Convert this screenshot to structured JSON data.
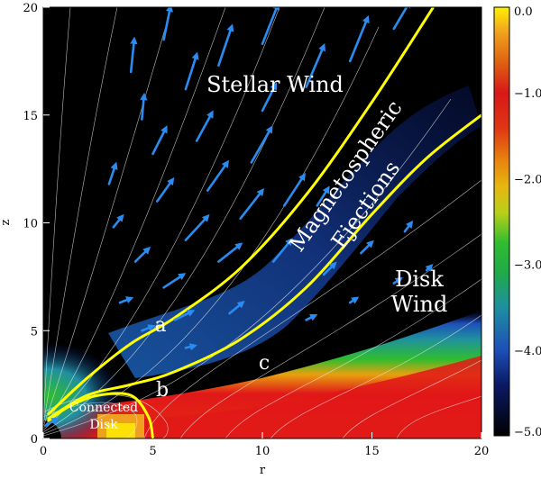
{
  "chart_data": {
    "type": "heatmap",
    "xlabel": "r",
    "ylabel": "z",
    "xlim": [
      0,
      20
    ],
    "ylim": [
      0,
      20
    ],
    "x_ticks": [
      "0",
      "5",
      "10",
      "15",
      "20"
    ],
    "y_ticks": [
      "0",
      "5",
      "10",
      "15",
      "20"
    ],
    "colorbar": {
      "range": [
        -5.0,
        0.0
      ],
      "ticks": [
        "0.0",
        "−1.0",
        "−2.0",
        "−3.0",
        "−4.0",
        "−5.0"
      ],
      "colors": [
        "#000000",
        "#0b1a66",
        "#1d4fb8",
        "#1f8fa0",
        "#1faa4a",
        "#2fbd2f",
        "#b8cf1a",
        "#e5b80f",
        "#e8860d",
        "#e03414",
        "#d81818",
        "#e06a10",
        "#f0a020",
        "#fff000"
      ]
    },
    "region_labels": {
      "stellar_wind": "Stellar Wind",
      "magnetospheric": "Magnetospheric",
      "ejections": "Ejections",
      "disk": "Disk",
      "wind": "Wind",
      "connected": "Connected",
      "disk_small": "Disk",
      "a": "a",
      "b": "b",
      "c": "c"
    },
    "separatrix_lines": [
      {
        "name": "a",
        "points": [
          [
            0.2,
            1.1
          ],
          [
            2,
            2.8
          ],
          [
            4,
            4.4
          ],
          [
            6,
            5.6
          ],
          [
            9,
            7.9
          ],
          [
            12,
            11.3
          ],
          [
            15,
            15.6
          ],
          [
            17.8,
            20
          ]
        ]
      },
      {
        "name": "b",
        "points": [
          [
            0.2,
            0.8
          ],
          [
            1.2,
            1.5
          ],
          [
            2.5,
            2.0
          ],
          [
            4,
            2.0
          ],
          [
            4.8,
            1.0
          ],
          [
            5,
            0
          ]
        ]
      },
      {
        "name": "c",
        "points": [
          [
            0.2,
            0.9
          ],
          [
            2,
            2.0
          ],
          [
            4,
            2.5
          ],
          [
            6,
            3.1
          ],
          [
            9,
            4.6
          ],
          [
            12,
            7.0
          ],
          [
            15,
            10.4
          ],
          [
            17.5,
            13.0
          ],
          [
            20,
            15.0
          ]
        ]
      }
    ],
    "velocity_arrows": [
      {
        "x": 4,
        "z": 17,
        "dx": 0.15,
        "dz": 1.5
      },
      {
        "x": 5.5,
        "z": 18.5,
        "dx": 0.3,
        "dz": 1.5
      },
      {
        "x": 4.5,
        "z": 14.8,
        "dx": 0.1,
        "dz": 1.1
      },
      {
        "x": 6.5,
        "z": 16.2,
        "dx": 0.5,
        "dz": 1.6
      },
      {
        "x": 8,
        "z": 17.3,
        "dx": 0.6,
        "dz": 1.8
      },
      {
        "x": 10,
        "z": 18.3,
        "dx": 0.7,
        "dz": 1.8
      },
      {
        "x": 12,
        "z": 16.3,
        "dx": 0.8,
        "dz": 1.9
      },
      {
        "x": 14,
        "z": 17.5,
        "dx": 0.8,
        "dz": 2.0
      },
      {
        "x": 16,
        "z": 19.0,
        "dx": 0.7,
        "dz": 1.2
      },
      {
        "x": 10,
        "z": 15.2,
        "dx": 0.6,
        "dz": 1.2
      },
      {
        "x": 3,
        "z": 11.8,
        "dx": 0.3,
        "dz": 0.9
      },
      {
        "x": 5,
        "z": 13.2,
        "dx": 0.6,
        "dz": 1.2
      },
      {
        "x": 7,
        "z": 13.8,
        "dx": 0.7,
        "dz": 1.3
      },
      {
        "x": 9.5,
        "z": 12.8,
        "dx": 0.9,
        "dz": 1.6
      },
      {
        "x": 3.2,
        "z": 9.8,
        "dx": 0.4,
        "dz": 0.5
      },
      {
        "x": 5.2,
        "z": 11.0,
        "dx": 0.7,
        "dz": 1.0
      },
      {
        "x": 7.5,
        "z": 11.5,
        "dx": 0.9,
        "dz": 1.3
      },
      {
        "x": 4.2,
        "z": 8.2,
        "dx": 0.6,
        "dz": 0.6
      },
      {
        "x": 6.5,
        "z": 9.2,
        "dx": 1.0,
        "dz": 1.1
      },
      {
        "x": 9,
        "z": 10.2,
        "dx": 1.0,
        "dz": 1.3
      },
      {
        "x": 11,
        "z": 10.8,
        "dx": 0.9,
        "dz": 1.4
      },
      {
        "x": 3.5,
        "z": 6.3,
        "dx": 0.5,
        "dz": 0.2
      },
      {
        "x": 5.5,
        "z": 7.0,
        "dx": 0.9,
        "dz": 0.6
      },
      {
        "x": 8,
        "z": 8.2,
        "dx": 1.0,
        "dz": 0.8
      },
      {
        "x": 10.5,
        "z": 8.2,
        "dx": 0.8,
        "dz": 1.0
      },
      {
        "x": 12.5,
        "z": 10.8,
        "dx": 0.5,
        "dz": 0.8
      },
      {
        "x": 4.5,
        "z": 5.0,
        "dx": 0.5,
        "dz": 0.2
      },
      {
        "x": 6.0,
        "z": 5.5,
        "dx": 0.8,
        "dz": 0.4
      },
      {
        "x": 8.5,
        "z": 5.8,
        "dx": 0.6,
        "dz": 0.5
      },
      {
        "x": 12.8,
        "z": 7.6,
        "dx": 0.5,
        "dz": 0.5
      },
      {
        "x": 14.5,
        "z": 8.6,
        "dx": 0.5,
        "dz": 0.5
      },
      {
        "x": 16.5,
        "z": 9.6,
        "dx": 0.3,
        "dz": 0.4
      },
      {
        "x": 6.5,
        "z": 4.2,
        "dx": 0.4,
        "dz": 0.1
      },
      {
        "x": 12,
        "z": 5.5,
        "dx": 0.4,
        "dz": 0.2
      },
      {
        "x": 14,
        "z": 6.3,
        "dx": 0.3,
        "dz": 0.2
      },
      {
        "x": 16,
        "z": 7.2,
        "dx": 0.3,
        "dz": 0.2
      },
      {
        "x": 17.5,
        "z": 7.8,
        "dx": 0.2,
        "dz": 0.2
      },
      {
        "x": 0.1,
        "z": 0.6,
        "dx": 0.5,
        "dz": 0.3
      }
    ]
  }
}
